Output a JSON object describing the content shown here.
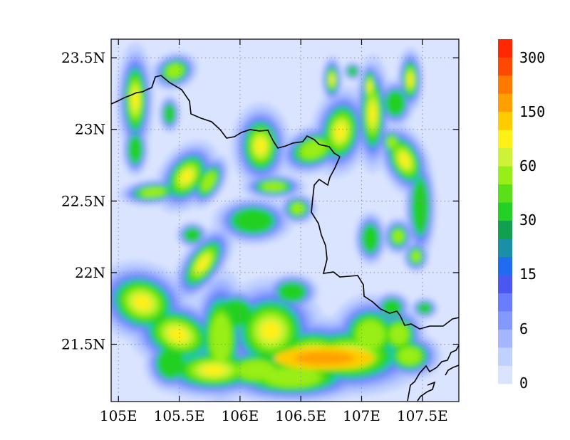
{
  "map": {
    "lat_ticks": [
      "23.5N",
      "23N",
      "22.5N",
      "22N",
      "21.5N"
    ],
    "lon_ticks": [
      "105E",
      "105.5E",
      "106E",
      "106.5E",
      "107E",
      "107.5E"
    ],
    "lat_tick_values": [
      23.5,
      23.0,
      22.5,
      22.0,
      21.5
    ],
    "lon_tick_values": [
      105.0,
      105.5,
      106.0,
      106.5,
      107.0,
      107.5
    ],
    "lon_range": [
      104.94,
      107.8
    ],
    "lat_range": [
      21.1,
      23.63
    ],
    "grid": true,
    "background_color": "#dbe4ff"
  },
  "colorbar": {
    "labels": [
      "300",
      "150",
      "60",
      "30",
      "15",
      "6",
      "0"
    ],
    "colors": [
      "#dbe4ff",
      "#c0d0ff",
      "#a3b6ff",
      "#8399ff",
      "#6b7dff",
      "#4a57f0",
      "#1e6cf0",
      "#1a8fa8",
      "#10a050",
      "#24d024",
      "#58e018",
      "#98ee18",
      "#cdf238",
      "#fff018",
      "#ffcc00",
      "#ffa000",
      "#ff7800",
      "#ff4800",
      "#ff2800"
    ]
  }
}
